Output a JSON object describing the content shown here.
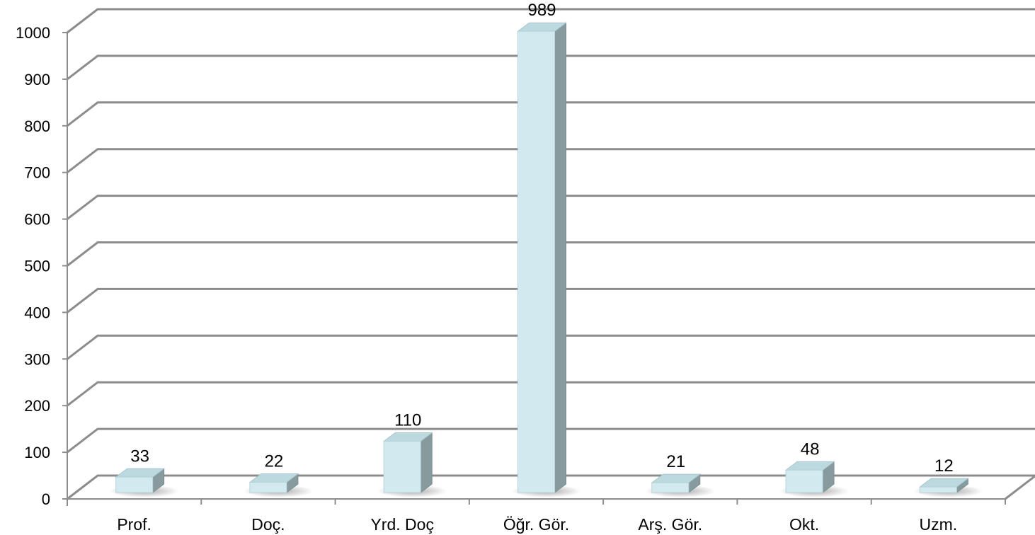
{
  "chart_data": {
    "type": "bar",
    "style": "3d-column",
    "categories": [
      "Prof.",
      "Doç.",
      "Yrd. Doç",
      "Öğr. Gör.",
      "Arş. Gör.",
      "Okt.",
      "Uzm."
    ],
    "values": [
      33,
      22,
      110,
      989,
      21,
      48,
      12
    ],
    "value_labels": [
      "33",
      "22",
      "110",
      "989",
      "21",
      "48",
      "12"
    ],
    "ylim": [
      0,
      1000
    ],
    "yticks": [
      "0",
      "100",
      "200",
      "300",
      "400",
      "500",
      "600",
      "700",
      "800",
      "900",
      "1000"
    ],
    "grid": true,
    "legend": "none",
    "title": "",
    "xlabel": "",
    "ylabel": "",
    "colors": {
      "bar_front": "#d2eaef",
      "bar_top": "#bcd9df",
      "bar_side": "#879b9f",
      "grid": "#8c8c8c",
      "axis": "#8c8c8c"
    }
  }
}
